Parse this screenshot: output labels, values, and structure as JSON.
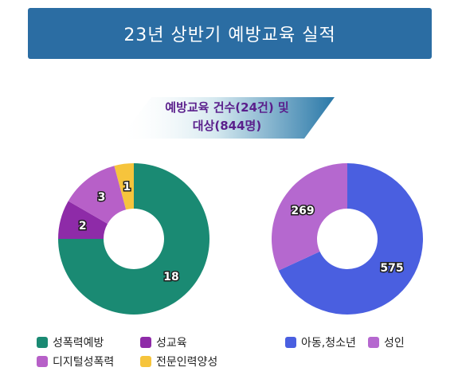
{
  "title": "23년 상반기 예방교육 실적",
  "subtitle_line1": "예방교육 건수(24건) 및",
  "subtitle_line2": "대상(844명)",
  "colors": {
    "title_bar": "#2b6da3",
    "subtitle_text": "#5a1f8c",
    "teal": "#1a8a73",
    "purple": "#8e2ba8",
    "orchid": "#b760c8",
    "yellow": "#f6c43c",
    "blue": "#4a5fe0",
    "lilac": "#b568cf"
  },
  "chart_data": [
    {
      "type": "pie",
      "variant": "donut",
      "series": [
        {
          "name": "성폭력예방",
          "value": 18,
          "label": "18",
          "color": "#1a8a73"
        },
        {
          "name": "성교육",
          "value": 2,
          "label": "2",
          "color": "#8e2ba8"
        },
        {
          "name": "디지털성폭력",
          "value": 3,
          "label": "3",
          "color": "#b760c8"
        },
        {
          "name": "전문인력양성",
          "value": 1,
          "label": "1",
          "color": "#f6c43c"
        }
      ],
      "legend_position": "bottom"
    },
    {
      "type": "pie",
      "variant": "donut",
      "series": [
        {
          "name": "아동,청소년",
          "value": 575,
          "label": "575",
          "color": "#4a5fe0"
        },
        {
          "name": "성인",
          "value": 269,
          "label": "269",
          "color": "#b568cf"
        }
      ],
      "legend_position": "bottom"
    }
  ]
}
